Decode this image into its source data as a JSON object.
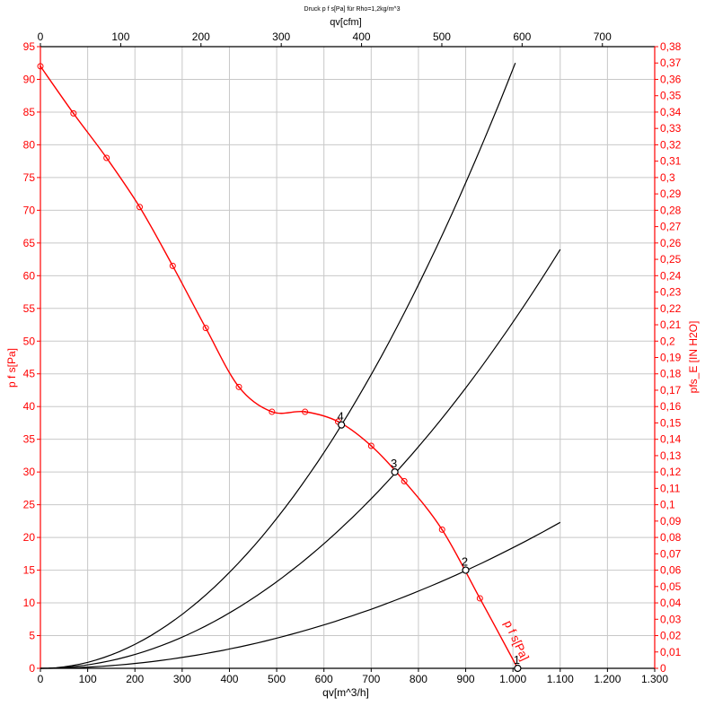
{
  "chart_data": {
    "type": "line",
    "title": "Druck p f s[Pa] für Rho=1,2kg/m^3",
    "xlabel": "qv[m^3/h]",
    "x2label": "qv[cfm]",
    "ylabel": "p f s[Pa]",
    "y2label": "pfs_E [IN H2O]",
    "xlim": [
      0,
      1300
    ],
    "ylim": [
      0,
      95
    ],
    "x2lim": [
      0,
      765.16
    ],
    "y2lim": [
      0,
      0.38
    ],
    "grid": true,
    "colors": {
      "fan_curve": "#ff0000",
      "system_curves": "#000000",
      "left_axis": "#ff0000",
      "right_axis": "#ff0000",
      "top_axis": "#000000",
      "bottom_axis": "#000000"
    },
    "x_ticks": [
      {
        "v": 0,
        "label": "0"
      },
      {
        "v": 100,
        "label": "100"
      },
      {
        "v": 200,
        "label": "200"
      },
      {
        "v": 300,
        "label": "300"
      },
      {
        "v": 400,
        "label": "400"
      },
      {
        "v": 500,
        "label": "500"
      },
      {
        "v": 600,
        "label": "600"
      },
      {
        "v": 700,
        "label": "700"
      },
      {
        "v": 800,
        "label": "800"
      },
      {
        "v": 900,
        "label": "900"
      },
      {
        "v": 1000,
        "label": "1.000"
      },
      {
        "v": 1100,
        "label": "1.100"
      },
      {
        "v": 1200,
        "label": "1.200"
      },
      {
        "v": 1300,
        "label": "1.300"
      }
    ],
    "x2_ticks": [
      {
        "v": 0,
        "label": "0"
      },
      {
        "v": 100,
        "label": "100"
      },
      {
        "v": 200,
        "label": "200"
      },
      {
        "v": 300,
        "label": "300"
      },
      {
        "v": 400,
        "label": "400"
      },
      {
        "v": 500,
        "label": "500"
      },
      {
        "v": 600,
        "label": "600"
      },
      {
        "v": 700,
        "label": "700"
      }
    ],
    "y_ticks": [
      {
        "v": 0,
        "label": "0"
      },
      {
        "v": 5,
        "label": "5"
      },
      {
        "v": 10,
        "label": "10"
      },
      {
        "v": 15,
        "label": "15"
      },
      {
        "v": 20,
        "label": "20"
      },
      {
        "v": 25,
        "label": "25"
      },
      {
        "v": 30,
        "label": "30"
      },
      {
        "v": 35,
        "label": "35"
      },
      {
        "v": 40,
        "label": "40"
      },
      {
        "v": 45,
        "label": "45"
      },
      {
        "v": 50,
        "label": "50"
      },
      {
        "v": 55,
        "label": "55"
      },
      {
        "v": 60,
        "label": "60"
      },
      {
        "v": 65,
        "label": "65"
      },
      {
        "v": 70,
        "label": "70"
      },
      {
        "v": 75,
        "label": "75"
      },
      {
        "v": 80,
        "label": "80"
      },
      {
        "v": 85,
        "label": "85"
      },
      {
        "v": 90,
        "label": "90"
      },
      {
        "v": 95,
        "label": "95"
      }
    ],
    "y2_ticks": [
      {
        "v": 0,
        "label": "0"
      },
      {
        "v": 0.01,
        "label": "0,01"
      },
      {
        "v": 0.02,
        "label": "0,02"
      },
      {
        "v": 0.03,
        "label": "0,03"
      },
      {
        "v": 0.04,
        "label": "0,04"
      },
      {
        "v": 0.05,
        "label": "0,05"
      },
      {
        "v": 0.06,
        "label": "0,06"
      },
      {
        "v": 0.07,
        "label": "0,07"
      },
      {
        "v": 0.08,
        "label": "0,08"
      },
      {
        "v": 0.09,
        "label": "0,09"
      },
      {
        "v": 0.1,
        "label": "0,1"
      },
      {
        "v": 0.11,
        "label": "0,11"
      },
      {
        "v": 0.12,
        "label": "0,12"
      },
      {
        "v": 0.13,
        "label": "0,13"
      },
      {
        "v": 0.14,
        "label": "0,14"
      },
      {
        "v": 0.15,
        "label": "0,15"
      },
      {
        "v": 0.16,
        "label": "0,16"
      },
      {
        "v": 0.17,
        "label": "0,17"
      },
      {
        "v": 0.18,
        "label": "0,18"
      },
      {
        "v": 0.19,
        "label": "0,19"
      },
      {
        "v": 0.2,
        "label": "0,2"
      },
      {
        "v": 0.21,
        "label": "0,21"
      },
      {
        "v": 0.22,
        "label": "0,22"
      },
      {
        "v": 0.23,
        "label": "0,23"
      },
      {
        "v": 0.24,
        "label": "0,24"
      },
      {
        "v": 0.25,
        "label": "0,25"
      },
      {
        "v": 0.26,
        "label": "0,26"
      },
      {
        "v": 0.27,
        "label": "0,27"
      },
      {
        "v": 0.28,
        "label": "0,28"
      },
      {
        "v": 0.29,
        "label": "0,29"
      },
      {
        "v": 0.3,
        "label": "0,3"
      },
      {
        "v": 0.31,
        "label": "0,31"
      },
      {
        "v": 0.32,
        "label": "0,32"
      },
      {
        "v": 0.33,
        "label": "0,33"
      },
      {
        "v": 0.34,
        "label": "0,34"
      },
      {
        "v": 0.35,
        "label": "0,35"
      },
      {
        "v": 0.36,
        "label": "0,36"
      },
      {
        "v": 0.37,
        "label": "0,37"
      },
      {
        "v": 0.38,
        "label": "0,38"
      }
    ],
    "series": [
      {
        "name": "p f s[Pa]",
        "role": "fan_curve",
        "x": [
          0,
          70,
          140,
          210,
          280,
          350,
          420,
          490,
          560,
          630,
          700,
          770,
          850,
          930,
          1010
        ],
        "y": [
          92,
          84.8,
          78,
          70.5,
          61.5,
          52,
          43,
          39.2,
          39.2,
          37.7,
          34,
          28.6,
          21.2,
          10.7,
          0
        ],
        "markers": [
          0,
          70,
          140,
          210,
          280,
          350,
          420,
          490,
          560,
          630,
          700,
          770,
          850,
          930
        ]
      },
      {
        "role": "system_curve",
        "x_end": 1005,
        "y_end": 92.5,
        "exponent": 2
      },
      {
        "role": "system_curve",
        "x_end": 1100,
        "y_end": 64,
        "exponent": 2
      },
      {
        "role": "system_curve",
        "x_end": 1100,
        "y_end": 22.3,
        "exponent": 2
      }
    ],
    "operating_points": [
      {
        "label": "1",
        "x": 1010,
        "y": 0
      },
      {
        "label": "2",
        "x": 900,
        "y": 15
      },
      {
        "label": "3",
        "x": 750,
        "y": 30
      },
      {
        "label": "4",
        "x": 637,
        "y": 37.2
      }
    ]
  }
}
